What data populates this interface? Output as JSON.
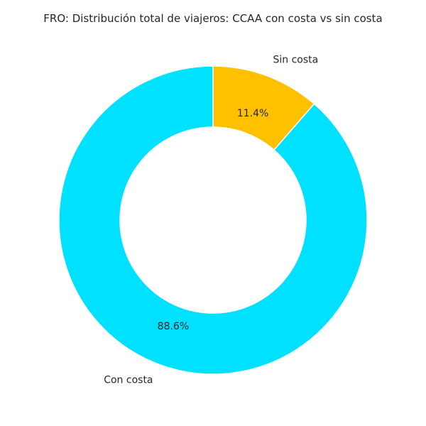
{
  "chart_data": {
    "type": "pie",
    "title": "FRO: Distribución total de viajeros: CCAA con costa vs sin costa",
    "donut": true,
    "start_angle_deg": 90,
    "direction": "clockwise",
    "slices": [
      {
        "label": "Sin costa",
        "value": 11.4,
        "pct_label": "11.4%",
        "color": "#ffc000"
      },
      {
        "label": "Con costa",
        "value": 88.6,
        "pct_label": "88.6%",
        "color": "#00e0ff"
      }
    ],
    "legend": "none"
  }
}
